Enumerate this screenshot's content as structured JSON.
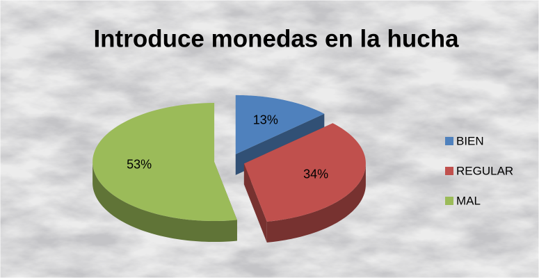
{
  "chart_data": {
    "type": "pie",
    "title": "Introduce monedas en la hucha",
    "categories": [
      "BIEN",
      "REGULAR",
      "MAL"
    ],
    "values": [
      13,
      34,
      53
    ],
    "value_labels": [
      "13%",
      "34%",
      "53%"
    ],
    "colors": [
      "#4f81bd",
      "#c0504d",
      "#9bbb59"
    ],
    "legend": "right"
  }
}
